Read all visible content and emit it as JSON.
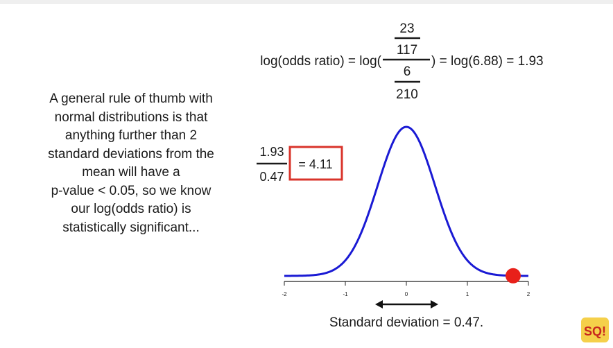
{
  "rule_of_thumb": {
    "lines": [
      "A general rule of thumb with",
      "normal distributions is that",
      "anything further than 2",
      "standard deviations from the",
      "mean will have a",
      "p-value < 0.05, so we know",
      "our log(odds ratio) is",
      "statistically significant..."
    ]
  },
  "log_odds_equation": {
    "lhs": "log(odds ratio) = log(",
    "rhs": ") = log(6.88) = 1.93",
    "outer_num_num": "23",
    "outer_num_den": "117",
    "outer_den_num": "6",
    "outer_den_den": "210"
  },
  "ratio_equation": {
    "numerator": "1.93",
    "denominator": "0.47",
    "result": "= 4.11",
    "box_color": "#d9342b"
  },
  "normal_curve": {
    "x_ticks": [
      "-2",
      "-1",
      "0",
      "1",
      "2"
    ],
    "x_min": -2,
    "x_max": 2,
    "sd": 0.47,
    "point_value": 1.75,
    "curve_color": "#1a1ad4",
    "point_color": "#e8201a",
    "sd_label": "Standard deviation = 0.47."
  },
  "logo": {
    "text": "SQ!"
  }
}
